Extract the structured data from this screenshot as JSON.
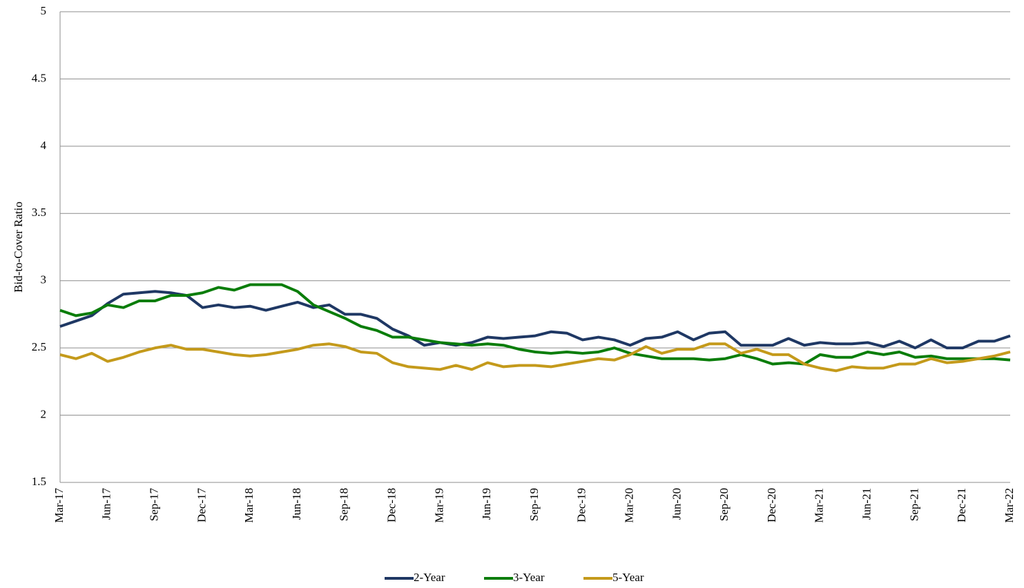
{
  "chart_data": {
    "type": "line",
    "y_label": "Bid-to-Cover  Ratio",
    "categories": [
      "Mar-17",
      null,
      null,
      "Jun-17",
      null,
      null,
      "Sep-17",
      null,
      null,
      "Dec-17",
      null,
      null,
      "Mar-18",
      null,
      null,
      "Jun-18",
      null,
      null,
      "Sep-18",
      null,
      null,
      "Dec-18",
      null,
      null,
      "Mar-19",
      null,
      null,
      "Jun-19",
      null,
      null,
      "Sep-19",
      null,
      null,
      "Dec-19",
      null,
      null,
      "Mar-20",
      null,
      null,
      "Jun-20",
      null,
      null,
      "Sep-20",
      null,
      null,
      "Dec-20",
      null,
      null,
      "Mar-21",
      null,
      null,
      "Jun-21",
      null,
      null,
      "Sep-21",
      null,
      null,
      "Dec-21",
      null,
      null,
      "Mar-22"
    ],
    "series": [
      {
        "name": "2-Year",
        "color": "#1f3864",
        "values": [
          2.66,
          2.7,
          2.74,
          2.83,
          2.9,
          2.91,
          2.92,
          2.91,
          2.89,
          2.8,
          2.82,
          2.8,
          2.81,
          2.78,
          2.81,
          2.84,
          2.8,
          2.82,
          2.75,
          2.75,
          2.72,
          2.64,
          2.59,
          2.52,
          2.54,
          2.52,
          2.54,
          2.58,
          2.57,
          2.58,
          2.59,
          2.62,
          2.61,
          2.56,
          2.58,
          2.56,
          2.52,
          2.57,
          2.58,
          2.62,
          2.56,
          2.61,
          2.62,
          2.52,
          2.52,
          2.52,
          2.57,
          2.52,
          2.54,
          2.53,
          2.53,
          2.54,
          2.51,
          2.55,
          2.5,
          2.56,
          2.5,
          2.5,
          2.55,
          2.55,
          2.59
        ]
      },
      {
        "name": "3-Year",
        "color": "#0a7d0a",
        "values": [
          2.78,
          2.74,
          2.76,
          2.82,
          2.8,
          2.85,
          2.85,
          2.89,
          2.89,
          2.91,
          2.95,
          2.93,
          2.97,
          2.97,
          2.97,
          2.92,
          2.82,
          2.77,
          2.72,
          2.66,
          2.63,
          2.58,
          2.58,
          2.56,
          2.54,
          2.53,
          2.52,
          2.53,
          2.52,
          2.49,
          2.47,
          2.46,
          2.47,
          2.46,
          2.47,
          2.5,
          2.46,
          2.44,
          2.42,
          2.42,
          2.42,
          2.41,
          2.42,
          2.45,
          2.42,
          2.38,
          2.39,
          2.38,
          2.45,
          2.43,
          2.43,
          2.47,
          2.45,
          2.47,
          2.43,
          2.44,
          2.42,
          2.42,
          2.42,
          2.42,
          2.41
        ]
      },
      {
        "name": "5-Year",
        "color": "#c49a1b",
        "values": [
          2.45,
          2.42,
          2.46,
          2.4,
          2.43,
          2.47,
          2.5,
          2.52,
          2.49,
          2.49,
          2.47,
          2.45,
          2.44,
          2.45,
          2.47,
          2.49,
          2.52,
          2.53,
          2.51,
          2.47,
          2.46,
          2.39,
          2.36,
          2.35,
          2.34,
          2.37,
          2.34,
          2.39,
          2.36,
          2.37,
          2.37,
          2.36,
          2.38,
          2.4,
          2.42,
          2.41,
          2.45,
          2.51,
          2.46,
          2.49,
          2.49,
          2.53,
          2.53,
          2.46,
          2.49,
          2.45,
          2.45,
          2.38,
          2.35,
          2.33,
          2.36,
          2.35,
          2.35,
          2.38,
          2.38,
          2.42,
          2.39,
          2.4,
          2.42,
          2.44,
          2.47
        ]
      }
    ],
    "ylim": [
      1.5,
      5
    ],
    "yticks": [
      1.5,
      2,
      2.5,
      3,
      3.5,
      4,
      4.5,
      5
    ],
    "grid": true,
    "legend": "bottom"
  }
}
